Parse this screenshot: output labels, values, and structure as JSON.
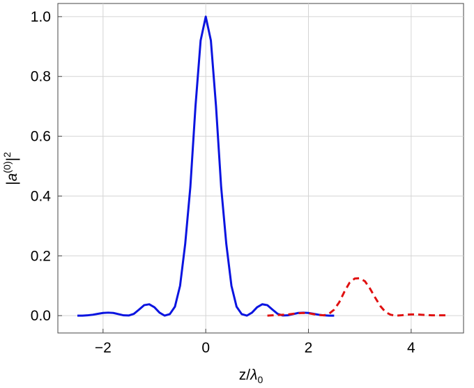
{
  "chart_data": {
    "type": "line",
    "x_label": [
      "z/",
      "λ",
      "0"
    ],
    "y_label": [
      "|",
      "a",
      "(0)",
      "|",
      "2"
    ],
    "xlim": [
      -2.88,
      5.02
    ],
    "ylim": [
      -0.058,
      1.044
    ],
    "xticks": [
      {
        "value": -2,
        "label": "−2"
      },
      0,
      2,
      4
    ],
    "yticks": [
      {
        "value": 0,
        "label": "0.0"
      },
      {
        "value": 0.2,
        "label": "0.2"
      },
      {
        "value": 0.4,
        "label": "0.4"
      },
      {
        "value": 0.6,
        "label": "0.6"
      },
      {
        "value": 0.8,
        "label": "0.8"
      },
      {
        "value": 1,
        "label": "1.0"
      }
    ],
    "grid": true,
    "series": [
      {
        "color": "#0a14e0",
        "dash": false,
        "x": [
          -2.5,
          -2.4,
          -2.3,
          -2.2,
          -2.1,
          -2.0,
          -1.9,
          -1.8,
          -1.7,
          -1.6,
          -1.5,
          -1.4,
          -1.3,
          -1.2,
          -1.1,
          -1.0,
          -0.9,
          -0.8,
          -0.7,
          -0.6,
          -0.5,
          -0.4,
          -0.3,
          -0.2,
          -0.1,
          0,
          0.1,
          0.2,
          0.3,
          0.4,
          0.5,
          0.6,
          0.7,
          0.8,
          0.9,
          1.0,
          1.1,
          1.2,
          1.3,
          1.4,
          1.5,
          1.6,
          1.7,
          1.8,
          1.9,
          2.0,
          2.1,
          2.2,
          2.3,
          2.4,
          2.5
        ],
        "values": [
          0.0,
          0.0,
          0.001,
          0.003,
          0.006,
          0.009,
          0.01,
          0.009,
          0.005,
          0.001,
          0.0005,
          0.006,
          0.02,
          0.035,
          0.038,
          0.028,
          0.01,
          0.0,
          0.005,
          0.03,
          0.1,
          0.24,
          0.43,
          0.7,
          0.92,
          1.0,
          0.92,
          0.7,
          0.43,
          0.24,
          0.1,
          0.03,
          0.005,
          0.0,
          0.01,
          0.028,
          0.038,
          0.035,
          0.02,
          0.006,
          0.0005,
          0.001,
          0.005,
          0.009,
          0.01,
          0.009,
          0.006,
          0.003,
          0.001,
          0.0,
          0.0
        ]
      },
      {
        "color": "#e01010",
        "dash": true,
        "x": [
          1.2,
          1.3,
          1.4,
          1.5,
          1.6,
          1.7,
          1.8,
          1.9,
          2.0,
          2.1,
          2.2,
          2.3,
          2.4,
          2.5,
          2.6,
          2.7,
          2.8,
          2.9,
          3.0,
          3.1,
          3.2,
          3.3,
          3.4,
          3.5,
          3.6,
          3.7,
          3.8,
          3.9,
          4.0,
          4.1,
          4.2,
          4.3,
          4.4,
          4.5,
          4.6,
          4.7
        ],
        "values": [
          0.0,
          0.001,
          0.002,
          0.003,
          0.004,
          0.006,
          0.008,
          0.009,
          0.008,
          0.005,
          0.002,
          0.001,
          0.006,
          0.02,
          0.045,
          0.08,
          0.11,
          0.124,
          0.125,
          0.115,
          0.09,
          0.06,
          0.032,
          0.012,
          0.003,
          0.0,
          0.001,
          0.003,
          0.004,
          0.004,
          0.003,
          0.002,
          0.001,
          0.001,
          0.001,
          0.001
        ]
      }
    ]
  }
}
